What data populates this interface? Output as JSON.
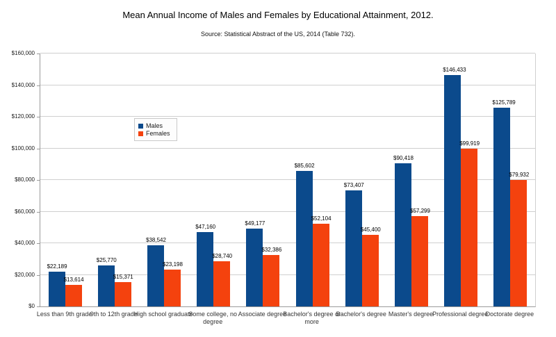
{
  "chart_data": {
    "type": "bar",
    "title": "Mean Annual Income of Males and Females by Educational Attainment, 2012.",
    "subtitle": "Source: Statistical Abstract of the US, 2014 (Table 732).",
    "categories": [
      "Less than 9th grade",
      "9th to 12th grade",
      "High school graduate",
      "Some college, no degree",
      "Associate degree",
      "Bachelor's degree or more",
      "Bachelor's degree",
      "Master's degree",
      "Professional degree",
      "Doctorate degree"
    ],
    "series": [
      {
        "name": "Males",
        "color": "#0b4a8c",
        "values": [
          22189,
          25770,
          38542,
          47160,
          49177,
          85602,
          73407,
          90418,
          146433,
          125789
        ]
      },
      {
        "name": "Females",
        "color": "#f4420e",
        "values": [
          13614,
          15371,
          23198,
          28740,
          32386,
          52104,
          45400,
          57299,
          99919,
          79932
        ]
      }
    ],
    "ylim": [
      0,
      160000
    ],
    "ytick_step": 20000,
    "ytick_labels": [
      "$0",
      "$20,000",
      "$40,000",
      "$60,000",
      "$80,000",
      "$100,000",
      "$120,000",
      "$140,000",
      "$160,000"
    ],
    "value_label_prefix": "$",
    "grid": true,
    "legend_position": "inside-upper-left",
    "legend_entries": [
      "Males",
      "Females"
    ]
  }
}
